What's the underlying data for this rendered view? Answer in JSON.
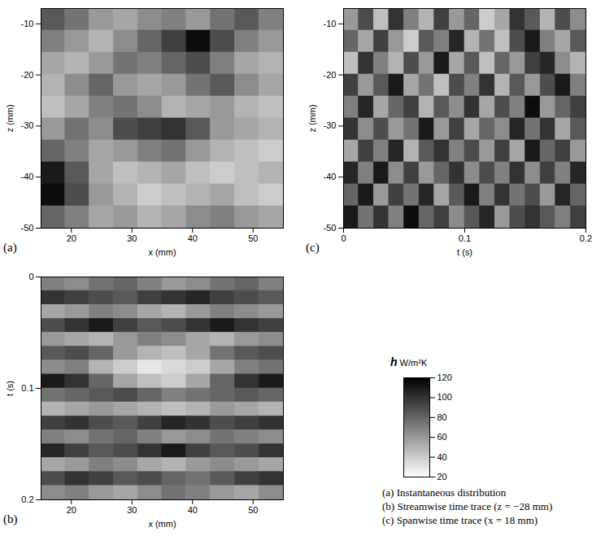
{
  "chart_data": [
    {
      "type": "heatmap",
      "panel": "(a)",
      "xlabel": "x (mm)",
      "ylabel": "z (mm)",
      "xlim": [
        15,
        55
      ],
      "ylim": [
        -50,
        -7
      ],
      "xticks": [
        20,
        30,
        40,
        50
      ],
      "yticks": [
        -10,
        -20,
        -30,
        -40,
        -50
      ],
      "x_bins": [
        15,
        19,
        23,
        27,
        31,
        35,
        39,
        43,
        47,
        51,
        55
      ],
      "y_bins": [
        -7,
        -11.3,
        -15.6,
        -19.9,
        -24.2,
        -28.5,
        -32.8,
        -37.1,
        -41.4,
        -45.7,
        -50
      ],
      "values": [
        [
          85,
          75,
          60,
          55,
          65,
          70,
          60,
          75,
          85,
          70
        ],
        [
          70,
          60,
          50,
          65,
          80,
          95,
          115,
          90,
          70,
          60
        ],
        [
          55,
          50,
          60,
          75,
          70,
          80,
          90,
          70,
          55,
          50
        ],
        [
          50,
          65,
          80,
          60,
          55,
          60,
          75,
          85,
          65,
          55
        ],
        [
          45,
          55,
          70,
          75,
          65,
          50,
          55,
          60,
          50,
          45
        ],
        [
          60,
          75,
          65,
          90,
          95,
          100,
          85,
          60,
          55,
          50
        ],
        [
          80,
          70,
          55,
          60,
          70,
          75,
          60,
          50,
          45,
          40
        ],
        [
          110,
          85,
          55,
          45,
          50,
          55,
          45,
          40,
          45,
          50
        ],
        [
          115,
          90,
          60,
          50,
          40,
          45,
          50,
          55,
          45,
          40
        ],
        [
          80,
          70,
          55,
          60,
          50,
          55,
          65,
          70,
          60,
          55
        ]
      ]
    },
    {
      "type": "heatmap",
      "panel": "(b)",
      "xlabel": "x (mm)",
      "ylabel": "t (s)",
      "xlim": [
        15,
        55
      ],
      "ylim": [
        0.2,
        0
      ],
      "xticks": [
        20,
        30,
        40,
        50
      ],
      "yticks": [
        0,
        0.1,
        0.2
      ],
      "x_bins": [
        15,
        19,
        23,
        27,
        31,
        35,
        39,
        43,
        47,
        51,
        55
      ],
      "y_bins": [
        0,
        0.0125,
        0.025,
        0.0375,
        0.05,
        0.0625,
        0.075,
        0.0875,
        0.1,
        0.1125,
        0.125,
        0.1375,
        0.15,
        0.1625,
        0.175,
        0.1875,
        0.2
      ],
      "values": [
        [
          70,
          65,
          75,
          80,
          70,
          60,
          65,
          75,
          80,
          70
        ],
        [
          100,
          95,
          90,
          85,
          95,
          100,
          105,
          95,
          90,
          85
        ],
        [
          55,
          60,
          70,
          65,
          55,
          50,
          60,
          70,
          65,
          60
        ],
        [
          90,
          100,
          110,
          95,
          85,
          90,
          100,
          110,
          100,
          95
        ],
        [
          60,
          55,
          50,
          60,
          70,
          65,
          55,
          50,
          60,
          65
        ],
        [
          85,
          90,
          80,
          60,
          50,
          45,
          55,
          75,
          85,
          90
        ],
        [
          65,
          70,
          50,
          40,
          30,
          35,
          40,
          55,
          70,
          75
        ],
        [
          110,
          100,
          80,
          55,
          45,
          40,
          55,
          80,
          100,
          110
        ],
        [
          75,
          80,
          85,
          90,
          80,
          70,
          75,
          80,
          85,
          80
        ],
        [
          50,
          55,
          60,
          55,
          50,
          45,
          50,
          60,
          55,
          50
        ],
        [
          95,
          100,
          90,
          85,
          95,
          105,
          100,
          90,
          95,
          100
        ],
        [
          70,
          65,
          75,
          80,
          70,
          60,
          65,
          75,
          70,
          65
        ],
        [
          105,
          95,
          85,
          90,
          100,
          110,
          95,
          85,
          90,
          100
        ],
        [
          55,
          60,
          70,
          65,
          55,
          50,
          60,
          65,
          60,
          55
        ],
        [
          90,
          100,
          95,
          85,
          90,
          80,
          75,
          85,
          95,
          100
        ],
        [
          65,
          70,
          60,
          55,
          65,
          75,
          70,
          60,
          55,
          65
        ]
      ]
    },
    {
      "type": "heatmap",
      "panel": "(c)",
      "xlabel": "t (s)",
      "ylabel": "z (mm)",
      "xlim": [
        0,
        0.2
      ],
      "ylim": [
        -50,
        -7
      ],
      "xticks": [
        0,
        0.1,
        0.2
      ],
      "yticks": [
        -10,
        -20,
        -30,
        -40,
        -50
      ],
      "x_bins": [
        0,
        0.0125,
        0.025,
        0.0375,
        0.05,
        0.0625,
        0.075,
        0.0875,
        0.1,
        0.1125,
        0.125,
        0.1375,
        0.15,
        0.1625,
        0.175,
        0.1875,
        0.2
      ],
      "y_bins": [
        -7,
        -11.3,
        -15.6,
        -19.9,
        -24.2,
        -28.5,
        -32.8,
        -37.1,
        -41.4,
        -45.7,
        -50
      ],
      "values": [
        [
          60,
          90,
          45,
          100,
          70,
          50,
          95,
          60,
          80,
          40,
          55,
          100,
          85,
          50,
          90,
          65
        ],
        [
          80,
          55,
          95,
          60,
          40,
          85,
          70,
          105,
          50,
          75,
          45,
          90,
          110,
          70,
          55,
          85
        ],
        [
          45,
          100,
          70,
          50,
          90,
          60,
          110,
          55,
          85,
          45,
          80,
          60,
          95,
          105,
          65,
          50
        ],
        [
          95,
          60,
          85,
          110,
          55,
          75,
          45,
          90,
          70,
          100,
          50,
          85,
          60,
          90,
          110,
          70
        ],
        [
          70,
          105,
          55,
          80,
          95,
          50,
          85,
          65,
          100,
          55,
          90,
          70,
          115,
          60,
          80,
          95
        ],
        [
          100,
          65,
          90,
          60,
          75,
          110,
          60,
          95,
          55,
          80,
          65,
          105,
          75,
          100,
          55,
          85
        ],
        [
          55,
          95,
          70,
          105,
          50,
          85,
          100,
          70,
          90,
          60,
          95,
          55,
          110,
          80,
          95,
          60
        ],
        [
          105,
          70,
          110,
          65,
          95,
          60,
          80,
          100,
          65,
          90,
          70,
          100,
          65,
          95,
          70,
          105
        ],
        [
          80,
          110,
          60,
          95,
          75,
          105,
          55,
          85,
          110,
          70,
          100,
          75,
          90,
          60,
          105,
          80
        ],
        [
          110,
          75,
          100,
          70,
          115,
          80,
          95,
          65,
          85,
          105,
          60,
          90,
          100,
          85,
          70,
          95
        ]
      ]
    }
  ],
  "color_bar": {
    "title": "h",
    "unit": "W/m²K",
    "lim": [
      20,
      120
    ],
    "ticks": [
      20,
      40,
      60,
      80,
      100,
      120
    ]
  },
  "captions": [
    "(a) Instantaneous distribution",
    "(b) Streamwise time trace (z = −28 mm)",
    "(c) Spanwise time trace (x = 18 mm)"
  ]
}
